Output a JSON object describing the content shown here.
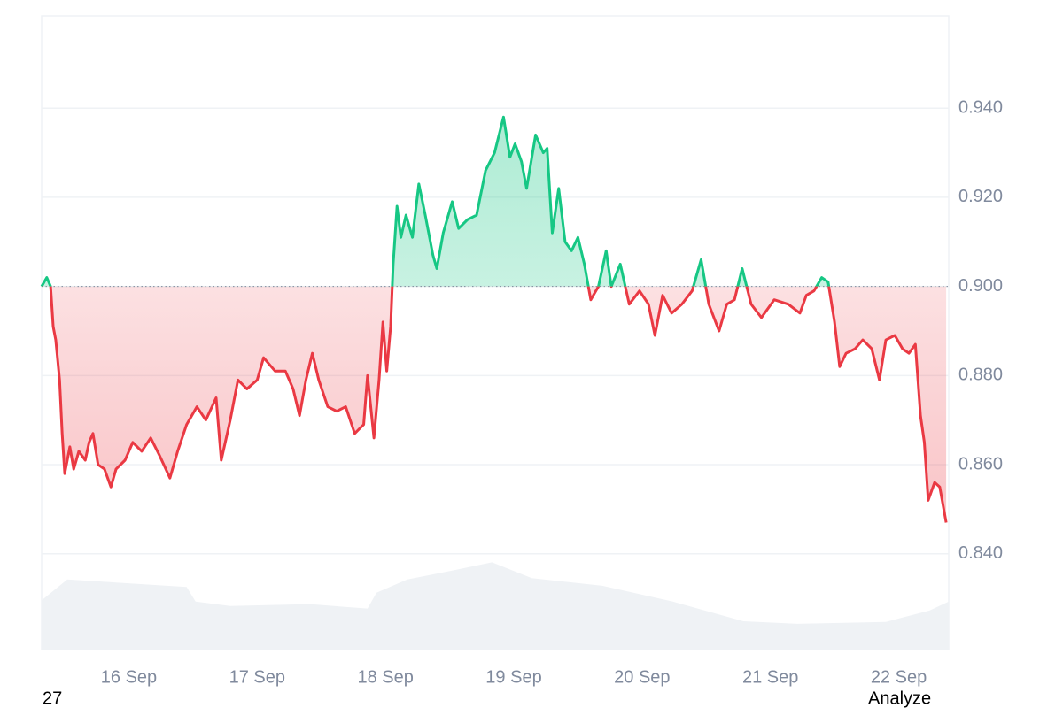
{
  "chart_data": {
    "type": "line",
    "x": [
      15.32,
      15.36,
      15.39,
      15.41,
      15.43,
      15.46,
      15.48,
      15.5,
      15.54,
      15.57,
      15.61,
      15.66,
      15.69,
      15.72,
      15.76,
      15.81,
      15.86,
      15.9,
      15.97,
      16.03,
      16.1,
      16.17,
      16.24,
      16.32,
      16.38,
      16.45,
      16.53,
      16.6,
      16.68,
      16.72,
      16.79,
      16.85,
      16.92,
      17.0,
      17.05,
      17.14,
      17.22,
      17.28,
      17.33,
      17.38,
      17.43,
      17.48,
      17.55,
      17.62,
      17.69,
      17.76,
      17.83,
      17.86,
      17.91,
      17.95,
      17.98,
      18.01,
      18.04,
      18.06,
      18.09,
      18.12,
      18.16,
      18.21,
      18.26,
      18.31,
      18.37,
      18.4,
      18.45,
      18.52,
      18.57,
      18.64,
      18.71,
      18.78,
      18.85,
      18.92,
      18.97,
      19.01,
      19.06,
      19.1,
      19.17,
      19.23,
      19.26,
      19.3,
      19.35,
      19.4,
      19.45,
      19.5,
      19.55,
      19.6,
      19.66,
      19.72,
      19.76,
      19.83,
      19.9,
      19.98,
      20.05,
      20.1,
      20.16,
      20.23,
      20.31,
      20.39,
      20.46,
      20.52,
      20.6,
      20.66,
      20.72,
      20.78,
      20.85,
      20.93,
      21.03,
      21.14,
      21.23,
      21.28,
      21.34,
      21.4,
      21.45,
      21.5,
      21.54,
      21.59,
      21.66,
      21.72,
      21.79,
      21.85,
      21.9,
      21.97,
      22.03,
      22.08,
      22.13,
      22.17,
      22.2,
      22.23,
      22.28,
      22.32,
      22.37
    ],
    "values": [
      0.9,
      0.902,
      0.9,
      0.891,
      0.888,
      0.879,
      0.867,
      0.858,
      0.864,
      0.859,
      0.863,
      0.861,
      0.865,
      0.867,
      0.86,
      0.859,
      0.855,
      0.859,
      0.861,
      0.865,
      0.863,
      0.866,
      0.862,
      0.857,
      0.863,
      0.869,
      0.873,
      0.87,
      0.875,
      0.861,
      0.87,
      0.879,
      0.877,
      0.879,
      0.884,
      0.881,
      0.881,
      0.877,
      0.871,
      0.879,
      0.885,
      0.879,
      0.873,
      0.872,
      0.873,
      0.867,
      0.869,
      0.88,
      0.866,
      0.879,
      0.892,
      0.881,
      0.891,
      0.905,
      0.918,
      0.911,
      0.916,
      0.911,
      0.923,
      0.916,
      0.907,
      0.904,
      0.912,
      0.919,
      0.913,
      0.915,
      0.916,
      0.926,
      0.93,
      0.938,
      0.929,
      0.932,
      0.928,
      0.922,
      0.934,
      0.93,
      0.931,
      0.912,
      0.922,
      0.91,
      0.908,
      0.911,
      0.905,
      0.897,
      0.9,
      0.908,
      0.9,
      0.905,
      0.896,
      0.899,
      0.896,
      0.889,
      0.898,
      0.894,
      0.896,
      0.899,
      0.906,
      0.896,
      0.89,
      0.896,
      0.897,
      0.904,
      0.896,
      0.893,
      0.897,
      0.896,
      0.894,
      0.898,
      0.899,
      0.902,
      0.901,
      0.892,
      0.882,
      0.885,
      0.886,
      0.888,
      0.886,
      0.879,
      0.888,
      0.889,
      0.886,
      0.885,
      0.887,
      0.871,
      0.865,
      0.852,
      0.856,
      0.855,
      0.847
    ],
    "baseline": 0.9,
    "up_color": "#16c784",
    "down_color": "#ea3943",
    "xlim": [
      15.32,
      22.39
    ],
    "xticks": [
      {
        "value": 16,
        "label": "16 Sep"
      },
      {
        "value": 17,
        "label": "17 Sep"
      },
      {
        "value": 18,
        "label": "18 Sep"
      },
      {
        "value": 19,
        "label": "19 Sep"
      },
      {
        "value": 20,
        "label": "20 Sep"
      },
      {
        "value": 21,
        "label": "21 Sep"
      },
      {
        "value": 22,
        "label": "22 Sep"
      }
    ],
    "ylim": [
      0.8183,
      0.9607
    ],
    "yticks": [
      {
        "value": 0.84,
        "label": "0.840"
      },
      {
        "value": 0.86,
        "label": "0.860"
      },
      {
        "value": 0.88,
        "label": "0.880"
      },
      {
        "value": 0.9,
        "label": "0.900"
      },
      {
        "value": 0.92,
        "label": "0.920"
      },
      {
        "value": 0.94,
        "label": "0.940"
      }
    ],
    "grid": true,
    "volume": {
      "color": "#eff2f5",
      "x": [
        15.32,
        15.52,
        16.45,
        16.52,
        16.79,
        17.41,
        17.86,
        17.93,
        18.17,
        18.45,
        18.83,
        19.14,
        19.69,
        20.24,
        20.79,
        21.21,
        21.9,
        22.24,
        22.39
      ],
      "values": [
        7.9,
        11.2,
        10.0,
        7.7,
        7.0,
        7.3,
        6.6,
        9.1,
        11.2,
        12.3,
        13.9,
        11.4,
        10.2,
        7.7,
        4.6,
        4.2,
        4.5,
        6.3,
        7.7
      ]
    },
    "y2lim": [
      0,
      100
    ],
    "footer_left": "27",
    "footer_right": "Analyze"
  }
}
